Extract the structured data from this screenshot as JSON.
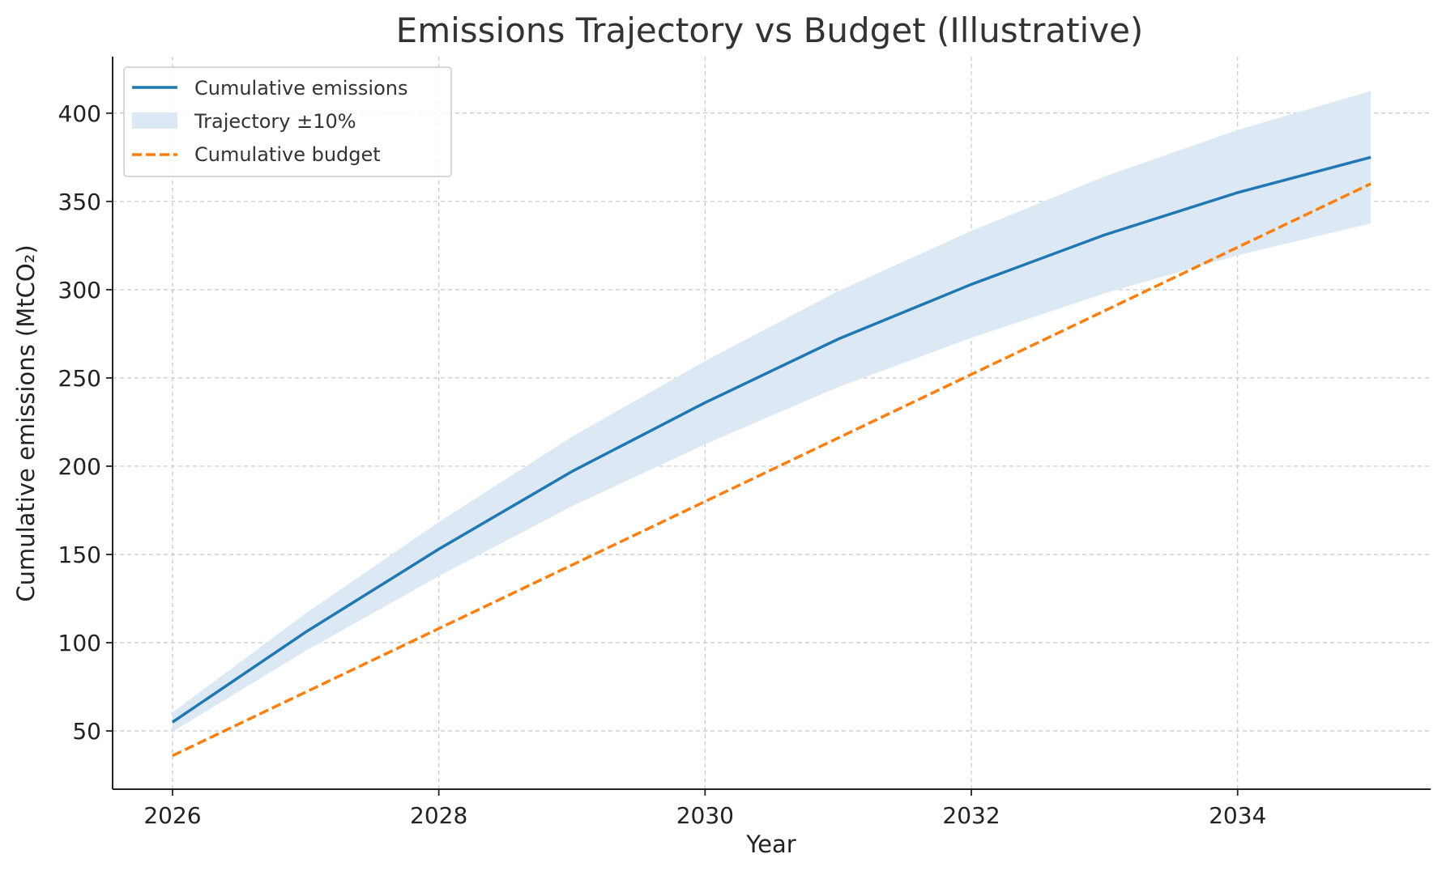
{
  "chart_data": {
    "type": "line",
    "title": "Emissions Trajectory vs Budget (Illustrative)",
    "xlabel": "Year",
    "ylabel": "Cumulative emissions (MtCO₂)",
    "xlim": [
      2025.55,
      2035.45
    ],
    "ylim": [
      17,
      432
    ],
    "xticks": [
      2026,
      2028,
      2030,
      2032,
      2034
    ],
    "yticks": [
      50,
      100,
      150,
      200,
      250,
      300,
      350,
      400
    ],
    "grid": true,
    "legend_position": "top-left",
    "x": [
      2026,
      2027,
      2028,
      2029,
      2030,
      2031,
      2032,
      2033,
      2034,
      2035
    ],
    "series": [
      {
        "name": "Cumulative emissions",
        "kind": "line",
        "color": "#1f77b4",
        "values": [
          55,
          106,
          153,
          197,
          236,
          272,
          303,
          331,
          355,
          375
        ]
      },
      {
        "name": "Trajectory ±10%",
        "kind": "band",
        "color": "#dce8f3",
        "lower": [
          49.5,
          95.4,
          137.7,
          177.3,
          212.4,
          244.8,
          272.7,
          297.9,
          319.5,
          337.5
        ],
        "upper": [
          60.5,
          116.6,
          168.3,
          216.7,
          259.6,
          299.2,
          333.3,
          364.1,
          390.5,
          412.5
        ]
      },
      {
        "name": "Cumulative budget",
        "kind": "dashed-line",
        "color": "#ff7f0e",
        "values": [
          36,
          72,
          108,
          144,
          180,
          216,
          252,
          288,
          324,
          360
        ]
      }
    ]
  }
}
